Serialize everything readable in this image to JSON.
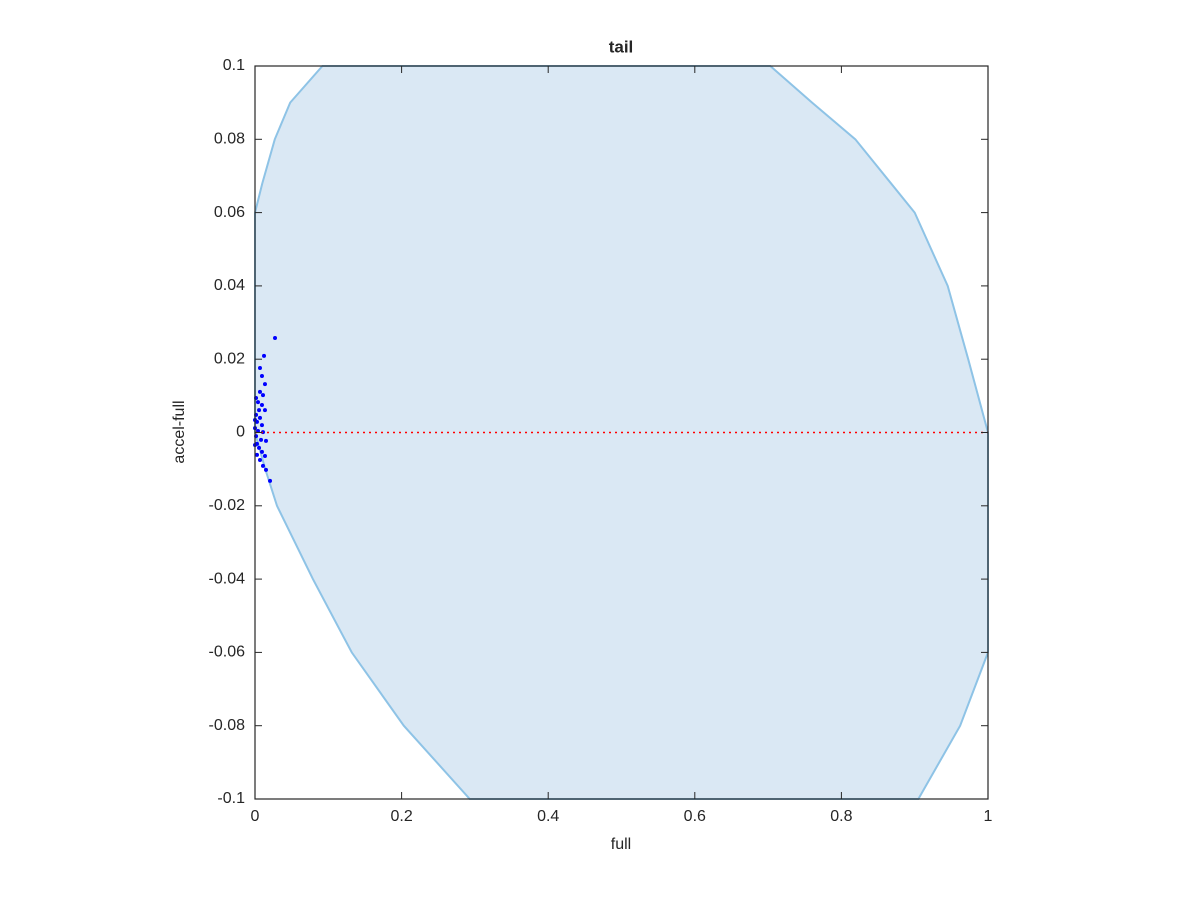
{
  "chart_data": {
    "type": "scatter",
    "title": "tail",
    "xlabel": "full",
    "ylabel": "accel-full",
    "xlim": [
      0,
      1
    ],
    "ylim": [
      -0.1,
      0.1
    ],
    "xticks": [
      0,
      0.2,
      0.4,
      0.6,
      0.8,
      1
    ],
    "yticks": [
      -0.1,
      -0.08,
      -0.06,
      -0.04,
      -0.02,
      0,
      0.02,
      0.04,
      0.06,
      0.08,
      0.1
    ],
    "series": [
      {
        "type": "area",
        "color": "#dae8f4",
        "edgecolor": "#8ec3e6",
        "x": [
          0,
          0.01,
          0.027,
          0.048,
          0.092,
          0.703,
          0.76,
          0.819,
          0.9,
          0.945,
          0.973,
          1,
          1,
          0.962,
          0.905,
          0.293,
          0.203,
          0.132,
          0.079,
          0.03,
          0.014,
          0
        ],
        "y": [
          0.06,
          0.068,
          0.08,
          0.09,
          0.1,
          0.1,
          0.09,
          0.08,
          0.06,
          0.04,
          0.02,
          0,
          -0.06,
          -0.08,
          -0.1,
          -0.1,
          -0.08,
          -0.06,
          -0.04,
          -0.02,
          -0.01,
          0
        ]
      },
      {
        "type": "scatter",
        "color": "#0000ff",
        "x": [
          0.0273,
          0.0123,
          0.0068,
          0.0095,
          0.0136,
          0.0068,
          0.0109,
          0.0014,
          0.0041,
          0.0095,
          0.0136,
          0.0055,
          0.0014,
          0.0068,
          0.0027,
          0.0095,
          0,
          0.0041,
          0.0109,
          0.0014,
          0.0082,
          0.015,
          0.0027,
          0.0055,
          0.0095,
          0.0136,
          0.0068,
          0.0109,
          0.015,
          0.0205,
          0,
          0,
          0.0027
        ],
        "y": [
          0.0258,
          0.0209,
          0.0176,
          0.0154,
          0.0132,
          0.0111,
          0.0102,
          0.0094,
          0.0083,
          0.0075,
          0.0061,
          0.0061,
          0.0048,
          0.004,
          0.0029,
          0.002,
          0.0012,
          0.0004,
          0.0001,
          -0.001,
          -0.002,
          -0.0023,
          -0.0031,
          -0.0042,
          -0.0053,
          -0.0064,
          -0.0075,
          -0.0091,
          -0.0102,
          -0.0132,
          0.0034,
          -0.0034,
          -0.0061
        ]
      },
      {
        "type": "line",
        "color": "#ff0000",
        "linestyle": "dotted",
        "x": [
          0,
          1
        ],
        "y": [
          0,
          0
        ]
      }
    ]
  }
}
